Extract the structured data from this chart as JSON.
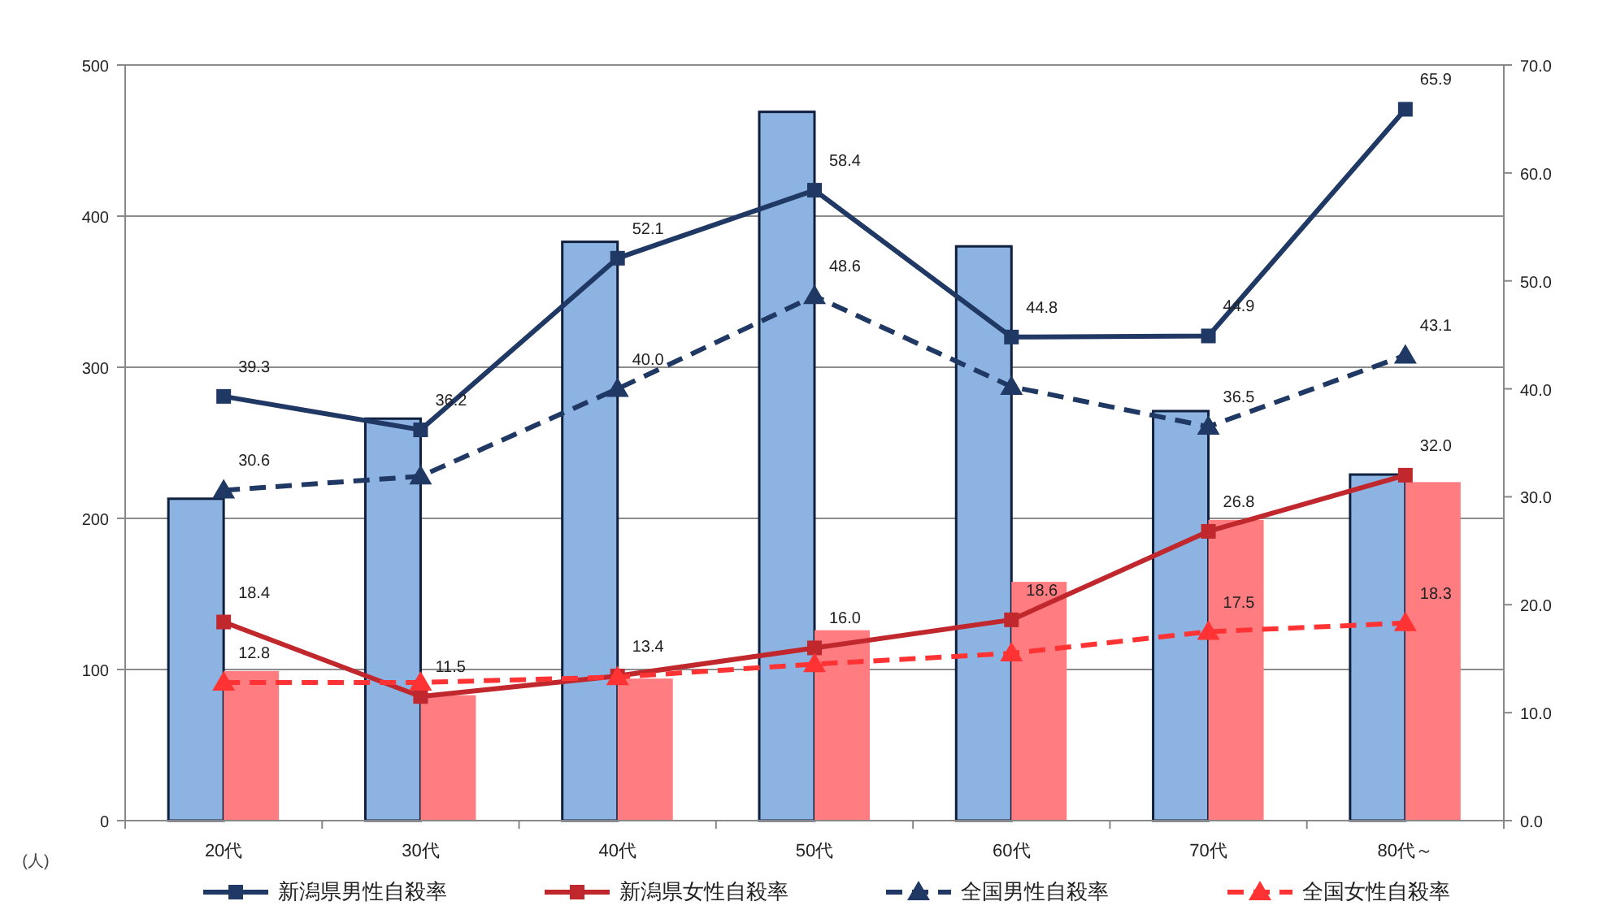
{
  "chart_data": {
    "type": "bar",
    "ylabel": "(人)",
    "categories": [
      "20代",
      "30代",
      "40代",
      "50代",
      "60代",
      "70代",
      "80代～"
    ],
    "series": [
      {
        "type": "bar",
        "color": "#8db3e2",
        "values": [
          213,
          266,
          383,
          469,
          380,
          271,
          229
        ]
      },
      {
        "type": "bar",
        "color": "#ff7c80",
        "values": [
          99,
          83,
          94,
          126,
          158,
          199,
          224
        ]
      },
      {
        "type": "line",
        "axis": "y2",
        "name": "新潟県男性自殺率",
        "color": "#1f3864",
        "marker": "square",
        "line_style": "solid",
        "values": [
          39.3,
          36.2,
          52.1,
          58.4,
          44.8,
          44.9,
          65.9
        ],
        "value_labels": [
          "39.3",
          "36.2",
          "52.1",
          "58.4",
          "44.8",
          "44.9",
          "65.9"
        ]
      },
      {
        "type": "line",
        "axis": "y2",
        "name": "新潟県女性自殺率",
        "color": "#c0282d",
        "marker": "square",
        "line_style": "solid",
        "values": [
          18.4,
          11.5,
          13.4,
          16.0,
          18.6,
          26.8,
          32.0
        ],
        "value_labels": [
          "18.4",
          "11.5",
          "13.4",
          "16.0",
          "18.6",
          "26.8",
          "32.0"
        ]
      },
      {
        "type": "line",
        "axis": "y2",
        "name": "全国男性自殺率",
        "color": "#1f3864",
        "marker": "triangle",
        "line_style": "dashed",
        "values": [
          30.6,
          31.9,
          40.0,
          48.6,
          40.2,
          36.5,
          43.1
        ],
        "value_labels": [
          "30.6",
          null,
          "40.0",
          "48.6",
          null,
          "36.5",
          "43.1"
        ]
      },
      {
        "type": "line",
        "axis": "y2",
        "name": "全国女性自殺率",
        "color": "#ff3333",
        "marker": "triangle",
        "line_style": "dashed",
        "values": [
          12.8,
          12.8,
          13.3,
          14.5,
          15.5,
          17.5,
          18.3
        ],
        "value_labels": [
          "12.8",
          null,
          null,
          null,
          null,
          "17.5",
          "18.3"
        ]
      }
    ],
    "ylim": [
      0,
      500
    ],
    "yticks": [
      0,
      100,
      200,
      300,
      400,
      500
    ],
    "y2lim": [
      0,
      70
    ],
    "y2ticks": [
      {
        "value": 0,
        "label": "0.0"
      },
      {
        "value": 10,
        "label": "10.0"
      },
      {
        "value": 20,
        "label": "20.0"
      },
      {
        "value": 30,
        "label": "30.0"
      },
      {
        "value": 40,
        "label": "40.0"
      },
      {
        "value": 50,
        "label": "50.0"
      },
      {
        "value": 60,
        "label": "60.0"
      },
      {
        "value": 70,
        "label": "70.0"
      }
    ],
    "grid": "y",
    "legend": "bottom"
  }
}
